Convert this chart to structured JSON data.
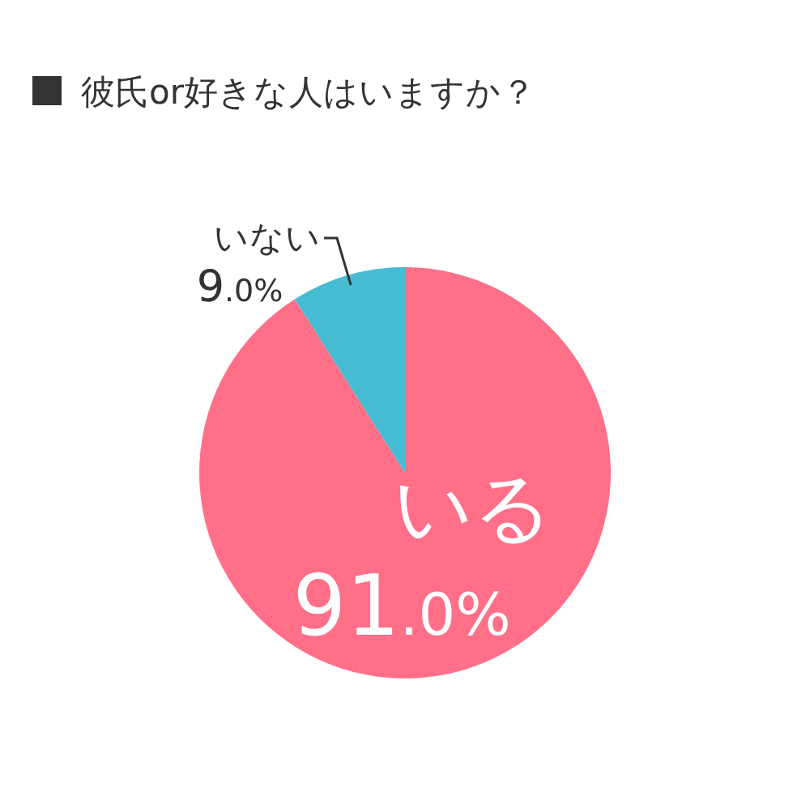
{
  "chart_data": {
    "type": "pie",
    "title": "彼氏or好きな人はいますか？",
    "categories": [
      "いる",
      "いない"
    ],
    "values": [
      91.0,
      9.0
    ],
    "colors": [
      "#ff6f88",
      "#45bcd2"
    ],
    "value_labels": [
      "91.0%",
      "9.0%"
    ]
  }
}
